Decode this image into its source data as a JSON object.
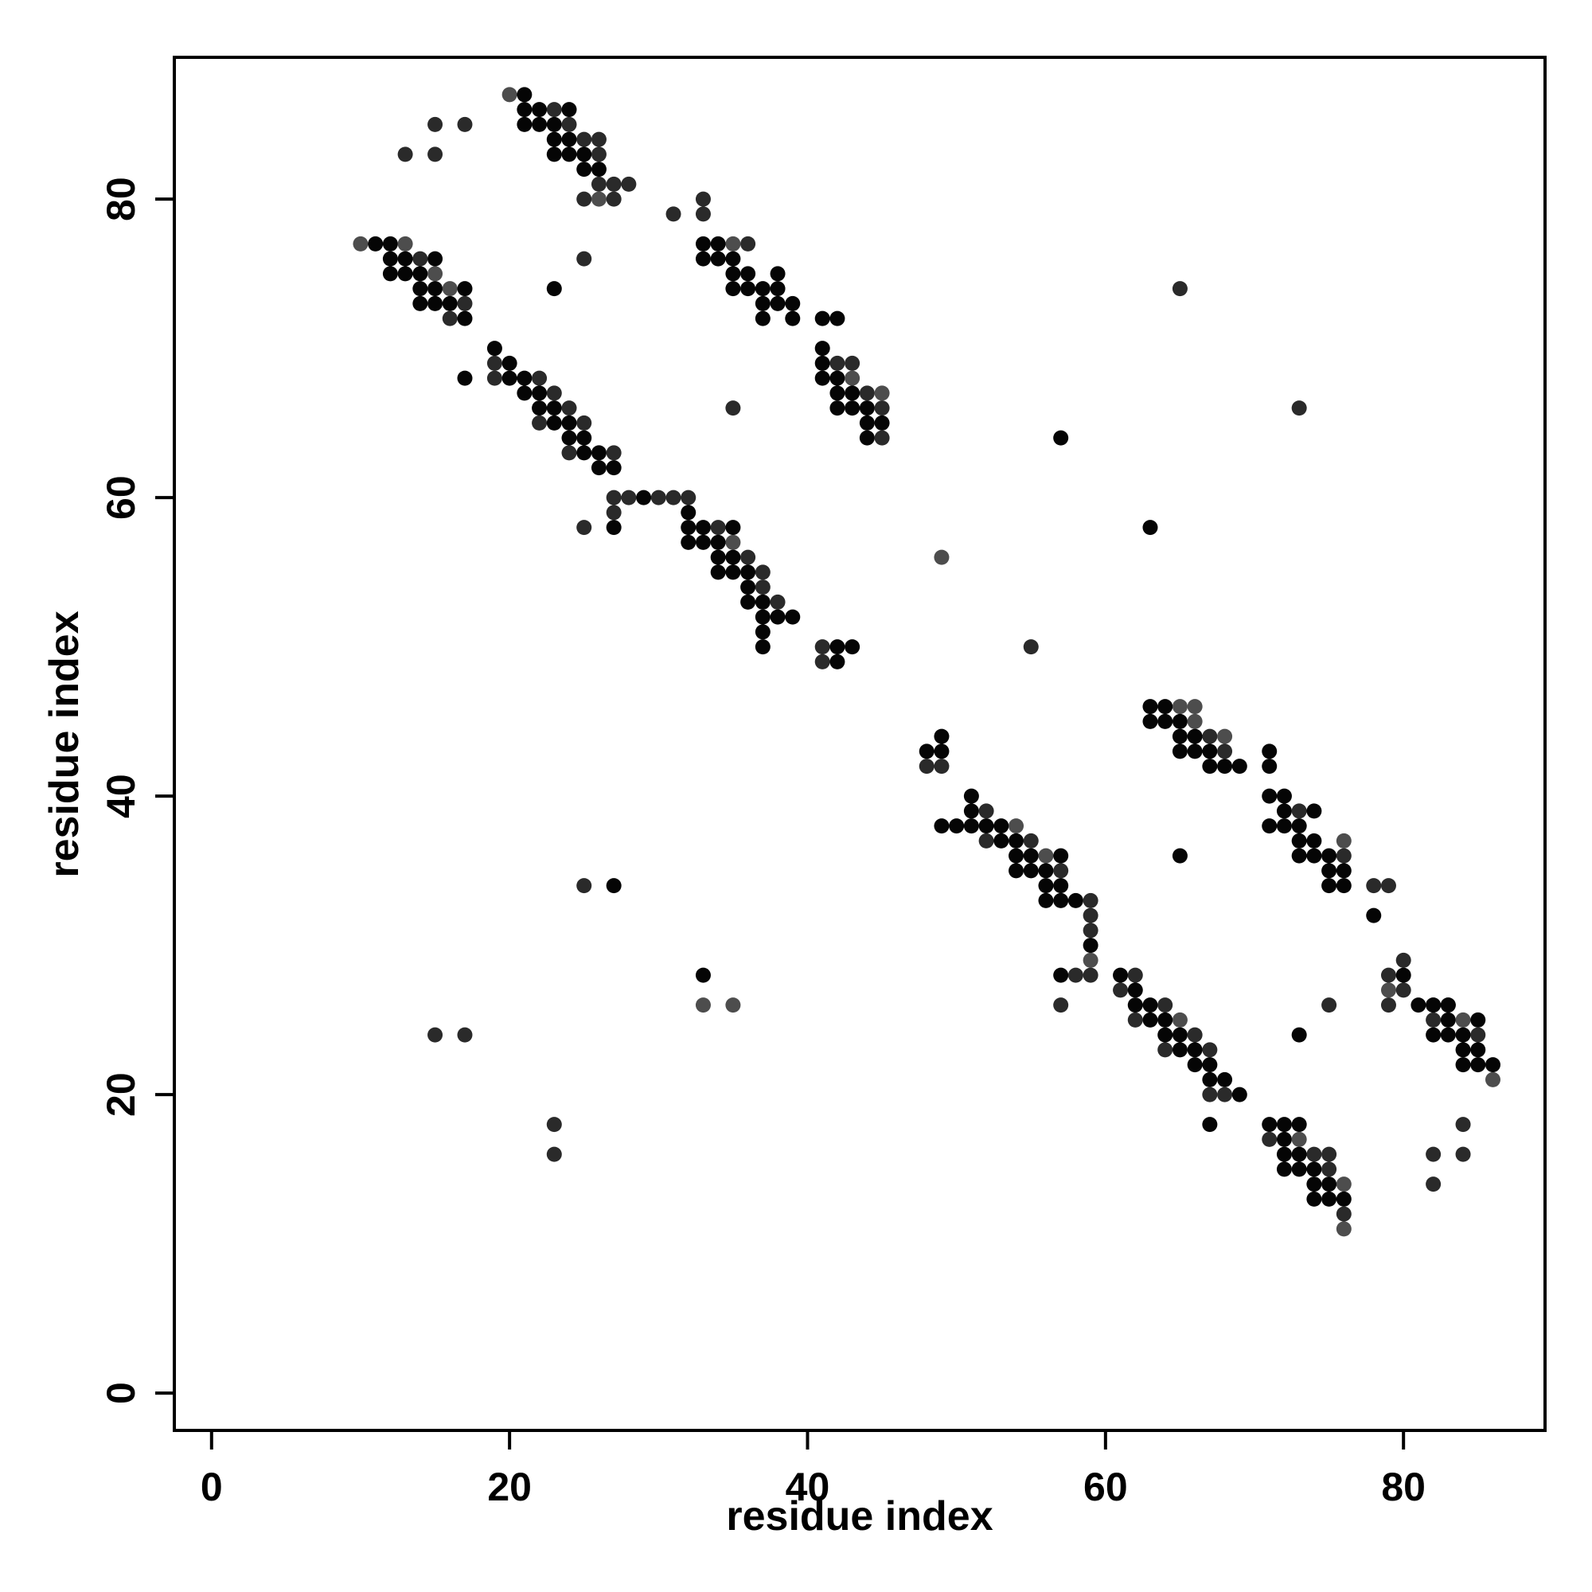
{
  "chart_data": {
    "type": "scatter",
    "title": "",
    "xlabel": "residue index",
    "ylabel": "residue index",
    "xlim": [
      -2.5,
      89.5
    ],
    "ylim": [
      -2.5,
      89.5
    ],
    "xticks": [
      0,
      20,
      40,
      60,
      80
    ],
    "yticks": [
      0,
      20,
      40,
      60,
      80
    ],
    "grid": false,
    "legend": "none",
    "point_colors": {
      "dark": "#050505",
      "mid": "#2a2a2a",
      "light": "#4d4d4d"
    },
    "points": [
      [
        20,
        87,
        "l"
      ],
      [
        21,
        87,
        "d"
      ],
      [
        21,
        86,
        "d"
      ],
      [
        22,
        86,
        "d"
      ],
      [
        23,
        86,
        "m"
      ],
      [
        24,
        86,
        "d"
      ],
      [
        15,
        85,
        "m"
      ],
      [
        17,
        85,
        "m"
      ],
      [
        21,
        85,
        "d"
      ],
      [
        22,
        85,
        "d"
      ],
      [
        23,
        85,
        "d"
      ],
      [
        24,
        85,
        "m"
      ],
      [
        23,
        84,
        "d"
      ],
      [
        24,
        84,
        "d"
      ],
      [
        25,
        84,
        "m"
      ],
      [
        26,
        84,
        "m"
      ],
      [
        23,
        83,
        "d"
      ],
      [
        24,
        83,
        "d"
      ],
      [
        25,
        83,
        "d"
      ],
      [
        26,
        83,
        "m"
      ],
      [
        13,
        83,
        "m"
      ],
      [
        15,
        83,
        "m"
      ],
      [
        25,
        82,
        "d"
      ],
      [
        26,
        82,
        "d"
      ],
      [
        26,
        81,
        "m"
      ],
      [
        27,
        81,
        "m"
      ],
      [
        28,
        81,
        "m"
      ],
      [
        25,
        80,
        "m"
      ],
      [
        26,
        80,
        "l"
      ],
      [
        27,
        80,
        "m"
      ],
      [
        33,
        80,
        "m"
      ],
      [
        31,
        79,
        "m"
      ],
      [
        33,
        79,
        "m"
      ],
      [
        10,
        77,
        "l"
      ],
      [
        11,
        77,
        "d"
      ],
      [
        12,
        77,
        "d"
      ],
      [
        13,
        77,
        "l"
      ],
      [
        33,
        77,
        "d"
      ],
      [
        34,
        77,
        "d"
      ],
      [
        35,
        77,
        "l"
      ],
      [
        36,
        77,
        "m"
      ],
      [
        12,
        76,
        "d"
      ],
      [
        13,
        76,
        "d"
      ],
      [
        14,
        76,
        "m"
      ],
      [
        15,
        76,
        "d"
      ],
      [
        25,
        76,
        "m"
      ],
      [
        33,
        76,
        "d"
      ],
      [
        34,
        76,
        "d"
      ],
      [
        35,
        76,
        "d"
      ],
      [
        12,
        75,
        "d"
      ],
      [
        13,
        75,
        "d"
      ],
      [
        14,
        75,
        "d"
      ],
      [
        15,
        75,
        "l"
      ],
      [
        35,
        75,
        "d"
      ],
      [
        36,
        75,
        "d"
      ],
      [
        38,
        75,
        "d"
      ],
      [
        14,
        74,
        "d"
      ],
      [
        15,
        74,
        "d"
      ],
      [
        16,
        74,
        "l"
      ],
      [
        17,
        74,
        "d"
      ],
      [
        23,
        74,
        "d"
      ],
      [
        35,
        74,
        "d"
      ],
      [
        36,
        74,
        "d"
      ],
      [
        37,
        74,
        "d"
      ],
      [
        38,
        74,
        "d"
      ],
      [
        65,
        74,
        "m"
      ],
      [
        14,
        73,
        "d"
      ],
      [
        15,
        73,
        "d"
      ],
      [
        16,
        73,
        "d"
      ],
      [
        17,
        73,
        "m"
      ],
      [
        37,
        73,
        "d"
      ],
      [
        38,
        73,
        "d"
      ],
      [
        39,
        73,
        "d"
      ],
      [
        16,
        72,
        "m"
      ],
      [
        17,
        72,
        "d"
      ],
      [
        37,
        72,
        "d"
      ],
      [
        39,
        72,
        "d"
      ],
      [
        41,
        72,
        "d"
      ],
      [
        42,
        72,
        "d"
      ],
      [
        19,
        70,
        "d"
      ],
      [
        41,
        70,
        "d"
      ],
      [
        19,
        69,
        "m"
      ],
      [
        20,
        69,
        "d"
      ],
      [
        41,
        69,
        "d"
      ],
      [
        42,
        69,
        "m"
      ],
      [
        43,
        69,
        "m"
      ],
      [
        17,
        68,
        "d"
      ],
      [
        19,
        68,
        "m"
      ],
      [
        20,
        68,
        "d"
      ],
      [
        21,
        68,
        "d"
      ],
      [
        22,
        68,
        "m"
      ],
      [
        41,
        68,
        "d"
      ],
      [
        42,
        68,
        "d"
      ],
      [
        43,
        68,
        "l"
      ],
      [
        21,
        67,
        "d"
      ],
      [
        22,
        67,
        "d"
      ],
      [
        23,
        67,
        "m"
      ],
      [
        42,
        67,
        "d"
      ],
      [
        43,
        67,
        "d"
      ],
      [
        44,
        67,
        "m"
      ],
      [
        45,
        67,
        "l"
      ],
      [
        22,
        66,
        "d"
      ],
      [
        23,
        66,
        "d"
      ],
      [
        24,
        66,
        "m"
      ],
      [
        35,
        66,
        "m"
      ],
      [
        42,
        66,
        "d"
      ],
      [
        43,
        66,
        "d"
      ],
      [
        44,
        66,
        "d"
      ],
      [
        45,
        66,
        "m"
      ],
      [
        73,
        66,
        "m"
      ],
      [
        22,
        65,
        "m"
      ],
      [
        23,
        65,
        "d"
      ],
      [
        24,
        65,
        "d"
      ],
      [
        25,
        65,
        "m"
      ],
      [
        44,
        65,
        "d"
      ],
      [
        45,
        65,
        "d"
      ],
      [
        24,
        64,
        "d"
      ],
      [
        25,
        64,
        "d"
      ],
      [
        44,
        64,
        "d"
      ],
      [
        45,
        64,
        "m"
      ],
      [
        57,
        64,
        "d"
      ],
      [
        24,
        63,
        "m"
      ],
      [
        25,
        63,
        "d"
      ],
      [
        26,
        63,
        "d"
      ],
      [
        27,
        63,
        "m"
      ],
      [
        26,
        62,
        "d"
      ],
      [
        27,
        62,
        "d"
      ],
      [
        27,
        60,
        "m"
      ],
      [
        28,
        60,
        "m"
      ],
      [
        29,
        60,
        "d"
      ],
      [
        30,
        60,
        "m"
      ],
      [
        31,
        60,
        "m"
      ],
      [
        32,
        60,
        "m"
      ],
      [
        27,
        59,
        "m"
      ],
      [
        32,
        59,
        "d"
      ],
      [
        25,
        58,
        "m"
      ],
      [
        27,
        58,
        "d"
      ],
      [
        32,
        58,
        "d"
      ],
      [
        33,
        58,
        "d"
      ],
      [
        34,
        58,
        "m"
      ],
      [
        35,
        58,
        "d"
      ],
      [
        63,
        58,
        "d"
      ],
      [
        32,
        57,
        "d"
      ],
      [
        33,
        57,
        "d"
      ],
      [
        34,
        57,
        "d"
      ],
      [
        35,
        57,
        "l"
      ],
      [
        34,
        56,
        "d"
      ],
      [
        35,
        56,
        "d"
      ],
      [
        36,
        56,
        "m"
      ],
      [
        49,
        56,
        "l"
      ],
      [
        34,
        55,
        "d"
      ],
      [
        35,
        55,
        "d"
      ],
      [
        36,
        55,
        "d"
      ],
      [
        37,
        55,
        "m"
      ],
      [
        36,
        54,
        "d"
      ],
      [
        37,
        54,
        "m"
      ],
      [
        36,
        53,
        "d"
      ],
      [
        37,
        53,
        "d"
      ],
      [
        38,
        53,
        "m"
      ],
      [
        37,
        52,
        "d"
      ],
      [
        38,
        52,
        "d"
      ],
      [
        39,
        52,
        "d"
      ],
      [
        37,
        51,
        "d"
      ],
      [
        37,
        50,
        "d"
      ],
      [
        41,
        50,
        "m"
      ],
      [
        42,
        50,
        "d"
      ],
      [
        43,
        50,
        "d"
      ],
      [
        55,
        50,
        "m"
      ],
      [
        41,
        49,
        "m"
      ],
      [
        42,
        49,
        "d"
      ],
      [
        63,
        46,
        "d"
      ],
      [
        64,
        46,
        "d"
      ],
      [
        65,
        46,
        "l"
      ],
      [
        66,
        46,
        "l"
      ],
      [
        63,
        45,
        "d"
      ],
      [
        64,
        45,
        "d"
      ],
      [
        65,
        45,
        "d"
      ],
      [
        66,
        45,
        "l"
      ],
      [
        65,
        44,
        "d"
      ],
      [
        66,
        44,
        "d"
      ],
      [
        67,
        44,
        "m"
      ],
      [
        68,
        44,
        "l"
      ],
      [
        49,
        44,
        "d"
      ],
      [
        65,
        43,
        "d"
      ],
      [
        66,
        43,
        "d"
      ],
      [
        67,
        43,
        "d"
      ],
      [
        68,
        43,
        "m"
      ],
      [
        48,
        43,
        "d"
      ],
      [
        49,
        43,
        "d"
      ],
      [
        71,
        43,
        "d"
      ],
      [
        48,
        42,
        "m"
      ],
      [
        49,
        42,
        "m"
      ],
      [
        67,
        42,
        "d"
      ],
      [
        68,
        42,
        "d"
      ],
      [
        69,
        42,
        "d"
      ],
      [
        71,
        42,
        "d"
      ],
      [
        51,
        40,
        "d"
      ],
      [
        71,
        40,
        "d"
      ],
      [
        72,
        40,
        "d"
      ],
      [
        51,
        39,
        "d"
      ],
      [
        52,
        39,
        "m"
      ],
      [
        72,
        39,
        "d"
      ],
      [
        73,
        39,
        "m"
      ],
      [
        74,
        39,
        "d"
      ],
      [
        49,
        38,
        "d"
      ],
      [
        50,
        38,
        "d"
      ],
      [
        51,
        38,
        "d"
      ],
      [
        52,
        38,
        "d"
      ],
      [
        53,
        38,
        "d"
      ],
      [
        54,
        38,
        "l"
      ],
      [
        71,
        38,
        "d"
      ],
      [
        72,
        38,
        "d"
      ],
      [
        73,
        38,
        "d"
      ],
      [
        52,
        37,
        "m"
      ],
      [
        53,
        37,
        "d"
      ],
      [
        54,
        37,
        "d"
      ],
      [
        55,
        37,
        "m"
      ],
      [
        73,
        37,
        "d"
      ],
      [
        74,
        37,
        "d"
      ],
      [
        76,
        37,
        "l"
      ],
      [
        54,
        36,
        "d"
      ],
      [
        55,
        36,
        "d"
      ],
      [
        56,
        36,
        "l"
      ],
      [
        57,
        36,
        "d"
      ],
      [
        65,
        36,
        "d"
      ],
      [
        73,
        36,
        "d"
      ],
      [
        74,
        36,
        "d"
      ],
      [
        75,
        36,
        "d"
      ],
      [
        76,
        36,
        "m"
      ],
      [
        54,
        35,
        "d"
      ],
      [
        55,
        35,
        "d"
      ],
      [
        56,
        35,
        "d"
      ],
      [
        57,
        35,
        "m"
      ],
      [
        75,
        35,
        "d"
      ],
      [
        76,
        35,
        "d"
      ],
      [
        56,
        34,
        "d"
      ],
      [
        57,
        34,
        "d"
      ],
      [
        25,
        34,
        "m"
      ],
      [
        27,
        34,
        "d"
      ],
      [
        75,
        34,
        "d"
      ],
      [
        76,
        34,
        "d"
      ],
      [
        78,
        34,
        "m"
      ],
      [
        79,
        34,
        "m"
      ],
      [
        56,
        33,
        "d"
      ],
      [
        57,
        33,
        "d"
      ],
      [
        58,
        33,
        "d"
      ],
      [
        59,
        33,
        "m"
      ],
      [
        59,
        32,
        "m"
      ],
      [
        78,
        32,
        "d"
      ],
      [
        59,
        31,
        "m"
      ],
      [
        59,
        30,
        "d"
      ],
      [
        59,
        29,
        "l"
      ],
      [
        80,
        29,
        "m"
      ],
      [
        33,
        28,
        "d"
      ],
      [
        57,
        28,
        "d"
      ],
      [
        58,
        28,
        "m"
      ],
      [
        59,
        28,
        "m"
      ],
      [
        61,
        28,
        "d"
      ],
      [
        62,
        28,
        "m"
      ],
      [
        79,
        28,
        "m"
      ],
      [
        80,
        28,
        "d"
      ],
      [
        61,
        27,
        "m"
      ],
      [
        62,
        27,
        "d"
      ],
      [
        79,
        27,
        "l"
      ],
      [
        80,
        27,
        "m"
      ],
      [
        81,
        26,
        "d"
      ],
      [
        82,
        26,
        "m"
      ],
      [
        83,
        26,
        "m"
      ],
      [
        57,
        26,
        "m"
      ],
      [
        62,
        26,
        "d"
      ],
      [
        63,
        26,
        "d"
      ],
      [
        64,
        26,
        "m"
      ],
      [
        33,
        26,
        "l"
      ],
      [
        35,
        26,
        "l"
      ],
      [
        75,
        26,
        "m"
      ],
      [
        79,
        26,
        "m"
      ],
      [
        82,
        26,
        "d"
      ],
      [
        83,
        26,
        "d"
      ],
      [
        63,
        25,
        "d"
      ],
      [
        64,
        25,
        "d"
      ],
      [
        65,
        25,
        "l"
      ],
      [
        62,
        25,
        "m"
      ],
      [
        83,
        25,
        "d"
      ],
      [
        84,
        25,
        "l"
      ],
      [
        85,
        25,
        "d"
      ],
      [
        82,
        25,
        "m"
      ],
      [
        64,
        24,
        "d"
      ],
      [
        65,
        24,
        "d"
      ],
      [
        66,
        24,
        "m"
      ],
      [
        15,
        24,
        "m"
      ],
      [
        17,
        24,
        "m"
      ],
      [
        73,
        24,
        "d"
      ],
      [
        82,
        24,
        "d"
      ],
      [
        83,
        24,
        "d"
      ],
      [
        84,
        24,
        "d"
      ],
      [
        85,
        24,
        "m"
      ],
      [
        64,
        23,
        "m"
      ],
      [
        65,
        23,
        "d"
      ],
      [
        66,
        23,
        "d"
      ],
      [
        67,
        23,
        "m"
      ],
      [
        84,
        23,
        "d"
      ],
      [
        85,
        23,
        "d"
      ],
      [
        66,
        22,
        "d"
      ],
      [
        67,
        22,
        "d"
      ],
      [
        84,
        22,
        "d"
      ],
      [
        85,
        22,
        "d"
      ],
      [
        86,
        22,
        "d"
      ],
      [
        67,
        21,
        "d"
      ],
      [
        68,
        21,
        "d"
      ],
      [
        86,
        21,
        "l"
      ],
      [
        67,
        20,
        "m"
      ],
      [
        68,
        20,
        "m"
      ],
      [
        69,
        20,
        "d"
      ],
      [
        23,
        18,
        "m"
      ],
      [
        67,
        18,
        "d"
      ],
      [
        71,
        18,
        "d"
      ],
      [
        72,
        18,
        "d"
      ],
      [
        73,
        18,
        "d"
      ],
      [
        84,
        18,
        "m"
      ],
      [
        71,
        17,
        "m"
      ],
      [
        72,
        17,
        "d"
      ],
      [
        73,
        17,
        "l"
      ],
      [
        23,
        16,
        "m"
      ],
      [
        72,
        16,
        "d"
      ],
      [
        73,
        16,
        "d"
      ],
      [
        74,
        16,
        "m"
      ],
      [
        75,
        16,
        "m"
      ],
      [
        82,
        16,
        "m"
      ],
      [
        84,
        16,
        "m"
      ],
      [
        72,
        15,
        "d"
      ],
      [
        73,
        15,
        "d"
      ],
      [
        74,
        15,
        "d"
      ],
      [
        75,
        15,
        "m"
      ],
      [
        74,
        14,
        "d"
      ],
      [
        75,
        14,
        "d"
      ],
      [
        76,
        14,
        "l"
      ],
      [
        82,
        14,
        "m"
      ],
      [
        74,
        13,
        "d"
      ],
      [
        75,
        13,
        "d"
      ],
      [
        76,
        13,
        "d"
      ],
      [
        76,
        12,
        "m"
      ],
      [
        76,
        11,
        "l"
      ]
    ]
  }
}
